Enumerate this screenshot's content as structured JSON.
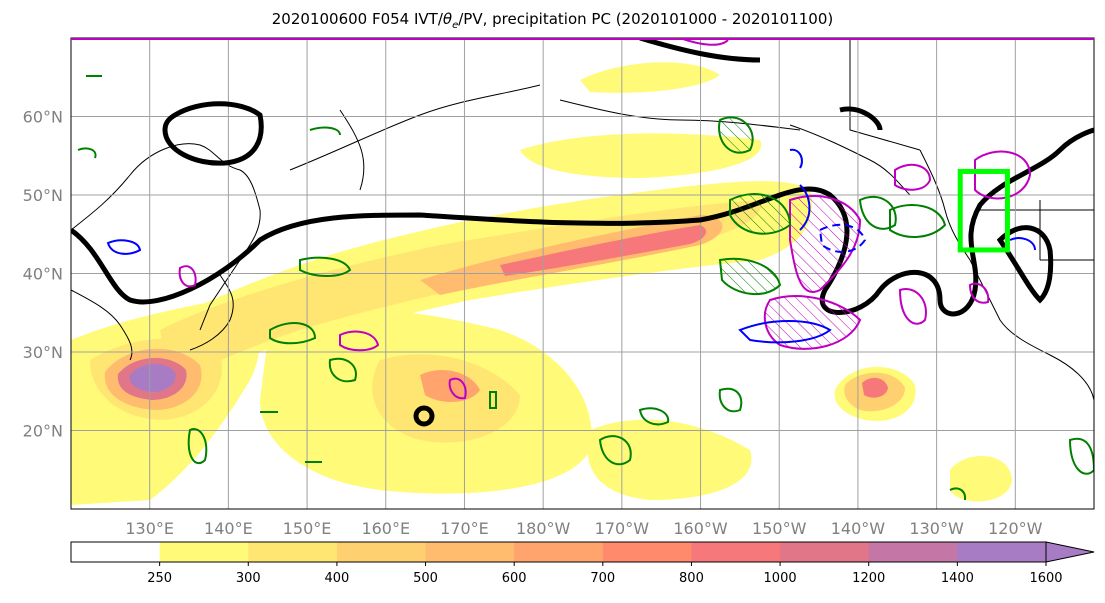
{
  "title": {
    "pre": "2020100600 F054 IVT/",
    "theta": "θ",
    "sub": "e",
    "post": "/PV, precipitation PC (2020101000 - 2020101100)"
  },
  "map": {
    "lon_min": 120,
    "lon_max": 250,
    "lat_min": 10,
    "lat_max": 70,
    "lat_ticks": [
      {
        "value": 20,
        "label": "20°N"
      },
      {
        "value": 30,
        "label": "30°N"
      },
      {
        "value": 40,
        "label": "40°N"
      },
      {
        "value": 50,
        "label": "50°N"
      },
      {
        "value": 60,
        "label": "60°N"
      }
    ],
    "lon_ticks": [
      {
        "value": 130,
        "label": "130°E"
      },
      {
        "value": 140,
        "label": "140°E"
      },
      {
        "value": 150,
        "label": "150°E"
      },
      {
        "value": 160,
        "label": "160°E"
      },
      {
        "value": 170,
        "label": "170°E"
      },
      {
        "value": 180,
        "label": "180°W"
      },
      {
        "value": 190,
        "label": "170°W"
      },
      {
        "value": 200,
        "label": "160°W"
      },
      {
        "value": 210,
        "label": "150°W"
      },
      {
        "value": 220,
        "label": "140°W"
      },
      {
        "value": 230,
        "label": "130°W"
      },
      {
        "value": 240,
        "label": "120°W"
      }
    ],
    "target_box": {
      "lon0": 233,
      "lon1": 239,
      "lat0": 43,
      "lat1": 53,
      "color": "#00ff00"
    },
    "pv_line_color": "#000000",
    "precip_color": "#008000",
    "theta_pos_color": "#c000c0",
    "theta_neg_color": "#0000ff"
  },
  "colorbar": {
    "levels": [
      250,
      300,
      400,
      500,
      600,
      700,
      800,
      1000,
      1200,
      1400,
      1600
    ],
    "colors": [
      "#ffffff",
      "#fffb78",
      "#ffe673",
      "#ffd070",
      "#ffbc6e",
      "#ffa46c",
      "#ff8a6c",
      "#f7787a",
      "#e07687",
      "#c477a6",
      "#a87cc5"
    ],
    "extend": "max"
  }
}
